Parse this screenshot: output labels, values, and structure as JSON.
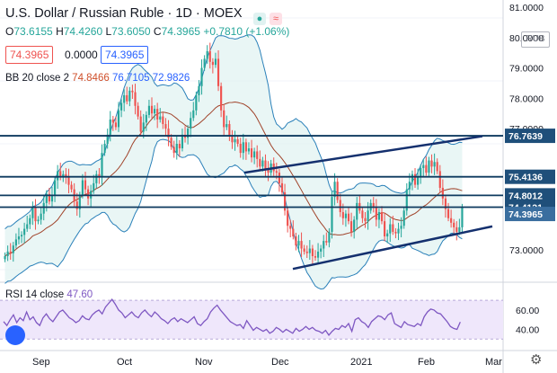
{
  "header": {
    "title": "U.S. Dollar / Russian Ruble · 1D · MOEX",
    "ohlc": {
      "o_label": "O",
      "o": "73.6155",
      "h_label": "H",
      "h": "74.4260",
      "l_label": "L",
      "l": "73.6050",
      "c_label": "C",
      "c": "74.3965",
      "change": "+0.7810 (+1.06%)"
    },
    "sell_price": "74.3965",
    "spread": "0.0000",
    "buy_price": "74.3965",
    "bb_label": "BB 20 close 2",
    "bb_values": [
      "74.8466",
      "76.7105",
      "72.9826"
    ],
    "rsi_label": "RSI 14 close",
    "rsi_value": "47.60",
    "currency": "RUB"
  },
  "colors": {
    "up": "#26a69a",
    "down": "#ef5350",
    "bb_basis": "#a0432a",
    "bb_band": "#2a80b9",
    "bb_fill": "#e0f2f1",
    "hline": "#0e3a5f",
    "channel": "#14306e",
    "rsi": "#7e57c2",
    "rsi_fill": "#efe7fb",
    "price_tag": "#1f4f7a"
  },
  "chart_data": {
    "type": "candlestick",
    "price_axis": {
      "ticks": [
        "81.0000",
        "80.0000",
        "79.0000",
        "78.0000",
        "77.0000",
        "73.0000"
      ],
      "range": [
        72.0,
        81.0
      ]
    },
    "time_axis": {
      "ticks": [
        "Sep",
        "Oct",
        "Nov",
        "Dec",
        "2021",
        "Feb",
        "Mar"
      ]
    },
    "rsi_axis": {
      "ticks": [
        "60.00",
        "40.00"
      ]
    },
    "horizontal_levels": [
      {
        "value": 76.7639,
        "label": "76.7639"
      },
      {
        "value": 75.4136,
        "label": "75.4136"
      },
      {
        "value": 74.8012,
        "label": "74.8012"
      },
      {
        "value": 74.4121,
        "label": "74.4121"
      }
    ],
    "last_price": {
      "value": 74.3965,
      "label": "74.3965"
    },
    "closes": [
      72.8,
      72.95,
      72.9,
      73.15,
      73.35,
      73.45,
      73.5,
      73.7,
      73.85,
      74.05,
      74.4,
      73.95,
      74.0,
      74.2,
      74.55,
      74.85,
      74.6,
      74.8,
      75.3,
      75.6,
      75.4,
      75.5,
      75.4,
      75.15,
      75.0,
      74.6,
      74.35,
      74.8,
      75.3,
      75.0,
      74.7,
      74.95,
      75.2,
      75.5,
      75.4,
      76.2,
      76.5,
      76.8,
      77.3,
      77.2,
      77.05,
      77.6,
      77.85,
      78.1,
      77.9,
      78.25,
      78.2,
      77.75,
      77.4,
      76.9,
      77.2,
      77.45,
      77.75,
      77.5,
      77.65,
      77.3,
      77.4,
      77.15,
      77.0,
      76.7,
      76.4,
      76.2,
      76.5,
      76.35,
      76.8,
      76.7,
      77.0,
      77.35,
      77.6,
      78.1,
      78.4,
      79.0,
      79.3,
      79.55,
      79.2,
      79.1,
      79.3,
      78.4,
      77.6,
      77.05,
      77.15,
      76.75,
      76.55,
      76.65,
      76.5,
      76.2,
      76.55,
      76.25,
      76.35,
      76.05,
      76.25,
      76.0,
      75.75,
      75.95,
      75.65,
      75.55,
      75.85,
      75.6,
      75.55,
      75.2,
      74.9,
      74.3,
      73.8,
      73.7,
      73.45,
      73.15,
      73.3,
      73.05,
      72.95,
      72.9,
      73.05,
      72.8,
      72.75,
      72.95,
      73.05,
      73.3,
      73.25,
      73.6,
      74.75,
      75.25,
      74.65,
      74.25,
      74.05,
      74.2,
      73.95,
      73.6,
      74.0,
      74.55,
      74.3,
      74.05,
      73.95,
      74.3,
      74.55,
      74.4,
      74.0,
      74.25,
      73.95,
      73.45,
      73.55,
      73.85,
      73.6,
      73.55,
      73.7,
      73.8,
      74.3,
      75.0,
      75.25,
      75.5,
      75.15,
      75.4,
      75.7,
      75.8,
      75.55,
      75.95,
      75.75,
      75.9,
      75.6,
      75.05,
      74.7,
      74.35,
      74.05,
      73.9,
      73.75,
      73.6,
      73.75,
      74.4
    ],
    "rsi": [
      48,
      44,
      50,
      55,
      47,
      52,
      49,
      58,
      50,
      53,
      47,
      44,
      52,
      56,
      51,
      48,
      53,
      58,
      60,
      56,
      52,
      50,
      47,
      49,
      54,
      51,
      50,
      55,
      58,
      60,
      56,
      63,
      67,
      71,
      66,
      60,
      57,
      52,
      55,
      58,
      54,
      52,
      57,
      60,
      56,
      53,
      58,
      55,
      51,
      49,
      46,
      50,
      52,
      48,
      51,
      49,
      47,
      50,
      53,
      46,
      44,
      48,
      51,
      58,
      62,
      65,
      60,
      56,
      52,
      48,
      46,
      44,
      45,
      41,
      49,
      44,
      39,
      42,
      40,
      38,
      40,
      36,
      38,
      42,
      40,
      37,
      40,
      38,
      36,
      41,
      38,
      40,
      43,
      40,
      42,
      39,
      38,
      36,
      39,
      34,
      38,
      41,
      40,
      44,
      42,
      46,
      38,
      50,
      52,
      48,
      46,
      42,
      48,
      51,
      54,
      53,
      50,
      55,
      57,
      46,
      44,
      42,
      48,
      45,
      44,
      43,
      46,
      44,
      53,
      58,
      61,
      60,
      57,
      56,
      52,
      48,
      43,
      41,
      40,
      47.6
    ]
  }
}
